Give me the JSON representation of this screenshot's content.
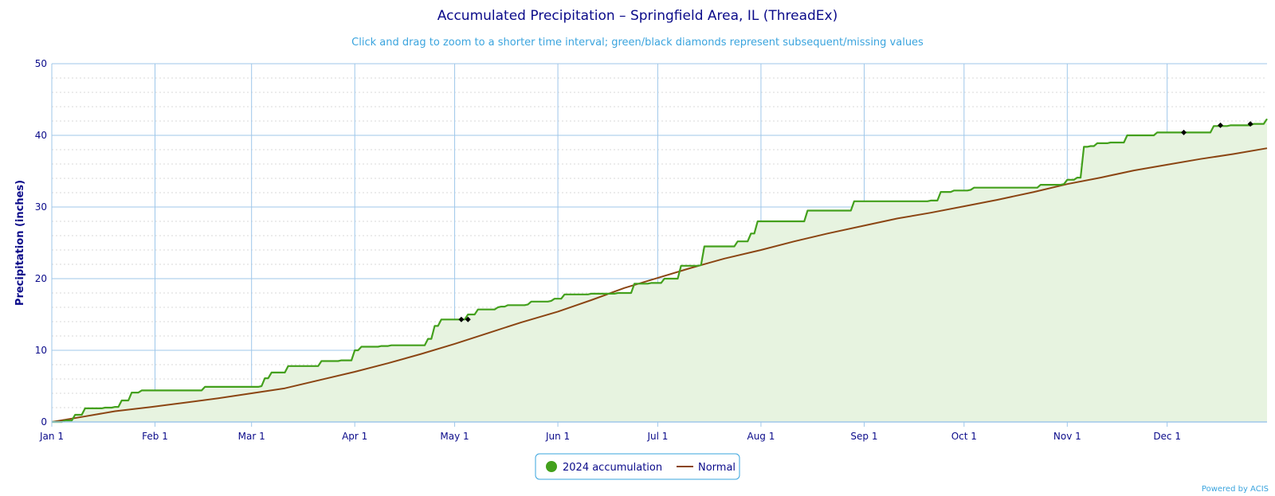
{
  "colors": {
    "title": "#0b0b8a",
    "subtitle": "#3aa4de",
    "grid": "#9fc7ea",
    "minor_grid": "#d8d8d8",
    "accumulation": "#43a01c",
    "accumulation_fill": "#e7f3e0",
    "normal": "#8b4513",
    "missing_marker": "#000000"
  },
  "credit": "Powered by ACIS",
  "chart_data": {
    "type": "area",
    "title": "Accumulated Precipitation – Springfield Area, IL (ThreadEx)",
    "subtitle": "Click and drag to zoom to a shorter time interval; green/black diamonds represent subsequent/missing values",
    "ylabel": "Precipitation (inches)",
    "xlabel": "",
    "ylim": [
      0,
      50
    ],
    "yticks": [
      0,
      10,
      20,
      30,
      40,
      50
    ],
    "xlim": [
      1,
      366
    ],
    "xticks": [
      {
        "label": "Jan 1",
        "day": 1
      },
      {
        "label": "Feb 1",
        "day": 32
      },
      {
        "label": "Mar 1",
        "day": 61
      },
      {
        "label": "Apr 1",
        "day": 92
      },
      {
        "label": "May 1",
        "day": 122
      },
      {
        "label": "Jun 1",
        "day": 153
      },
      {
        "label": "Jul 1",
        "day": 183
      },
      {
        "label": "Aug 1",
        "day": 214
      },
      {
        "label": "Sep 1",
        "day": 245
      },
      {
        "label": "Oct 1",
        "day": 275
      },
      {
        "label": "Nov 1",
        "day": 306
      },
      {
        "label": "Dec 1",
        "day": 336
      }
    ],
    "grid": true,
    "legend_position": "bottom-center",
    "series": [
      {
        "name": "2024 accumulation",
        "style": "step-area",
        "points": [
          [
            1,
            0
          ],
          [
            5,
            0.2
          ],
          [
            8,
            1.0
          ],
          [
            11,
            1.9
          ],
          [
            15,
            1.9
          ],
          [
            17,
            2.0
          ],
          [
            20,
            2.1
          ],
          [
            22,
            3.0
          ],
          [
            25,
            4.1
          ],
          [
            28,
            4.4
          ],
          [
            46,
            4.4
          ],
          [
            47,
            4.9
          ],
          [
            57,
            4.9
          ],
          [
            64,
            5.0
          ],
          [
            65,
            6.1
          ],
          [
            67,
            6.9
          ],
          [
            72,
            7.8
          ],
          [
            82,
            8.5
          ],
          [
            88,
            8.6
          ],
          [
            92,
            10.0
          ],
          [
            94,
            10.5
          ],
          [
            100,
            10.6
          ],
          [
            103,
            10.7
          ],
          [
            112,
            10.7
          ],
          [
            114,
            11.6
          ],
          [
            116,
            13.4
          ],
          [
            118,
            14.3
          ],
          [
            124,
            14.3
          ],
          [
            126,
            15.0
          ],
          [
            129,
            15.7
          ],
          [
            135,
            16.0
          ],
          [
            136,
            16.1
          ],
          [
            138,
            16.3
          ],
          [
            144,
            16.4
          ],
          [
            145,
            16.8
          ],
          [
            151,
            16.9
          ],
          [
            152,
            17.2
          ],
          [
            155,
            17.8
          ],
          [
            163,
            17.9
          ],
          [
            171,
            18.0
          ],
          [
            176,
            19.3
          ],
          [
            181,
            19.4
          ],
          [
            185,
            20.0
          ],
          [
            190,
            21.8
          ],
          [
            196,
            21.9
          ],
          [
            197,
            24.5
          ],
          [
            206,
            24.5
          ],
          [
            207,
            25.2
          ],
          [
            211,
            26.3
          ],
          [
            213,
            28.0
          ],
          [
            226,
            28.0
          ],
          [
            228,
            29.5
          ],
          [
            241,
            29.5
          ],
          [
            242,
            30.8
          ],
          [
            259,
            30.8
          ],
          [
            265,
            30.9
          ],
          [
            268,
            32.1
          ],
          [
            272,
            32.3
          ],
          [
            277,
            32.4
          ],
          [
            278,
            32.7
          ],
          [
            296,
            32.7
          ],
          [
            298,
            33.1
          ],
          [
            305,
            33.2
          ],
          [
            306,
            33.8
          ],
          [
            309,
            34.1
          ],
          [
            311,
            38.4
          ],
          [
            313,
            38.5
          ],
          [
            315,
            38.9
          ],
          [
            319,
            39.0
          ],
          [
            324,
            40.0
          ],
          [
            328,
            40.0
          ],
          [
            333,
            40.4
          ],
          [
            348,
            40.4
          ],
          [
            350,
            41.3
          ],
          [
            355,
            41.4
          ],
          [
            362,
            41.6
          ],
          [
            366,
            42.3
          ]
        ]
      },
      {
        "name": "Normal",
        "style": "line",
        "points": [
          [
            1,
            0
          ],
          [
            10,
            0.7
          ],
          [
            20,
            1.5
          ],
          [
            31,
            2.1
          ],
          [
            41,
            2.7
          ],
          [
            51,
            3.3
          ],
          [
            61,
            4.0
          ],
          [
            71,
            4.7
          ],
          [
            81,
            5.8
          ],
          [
            92,
            7.0
          ],
          [
            102,
            8.2
          ],
          [
            112,
            9.5
          ],
          [
            122,
            10.9
          ],
          [
            132,
            12.4
          ],
          [
            142,
            13.9
          ],
          [
            153,
            15.4
          ],
          [
            163,
            17.0
          ],
          [
            173,
            18.7
          ],
          [
            183,
            20.1
          ],
          [
            193,
            21.5
          ],
          [
            203,
            22.8
          ],
          [
            214,
            24.0
          ],
          [
            224,
            25.2
          ],
          [
            234,
            26.3
          ],
          [
            245,
            27.4
          ],
          [
            255,
            28.4
          ],
          [
            265,
            29.2
          ],
          [
            275,
            30.1
          ],
          [
            285,
            31.0
          ],
          [
            296,
            32.1
          ],
          [
            306,
            33.2
          ],
          [
            316,
            34.1
          ],
          [
            326,
            35.1
          ],
          [
            336,
            35.9
          ],
          [
            346,
            36.7
          ],
          [
            356,
            37.4
          ],
          [
            366,
            38.2
          ]
        ]
      }
    ],
    "missing_markers": [
      [
        124,
        14.3
      ],
      [
        126,
        14.3
      ],
      [
        341,
        40.4
      ],
      [
        352,
        41.4
      ],
      [
        361,
        41.6
      ]
    ]
  }
}
